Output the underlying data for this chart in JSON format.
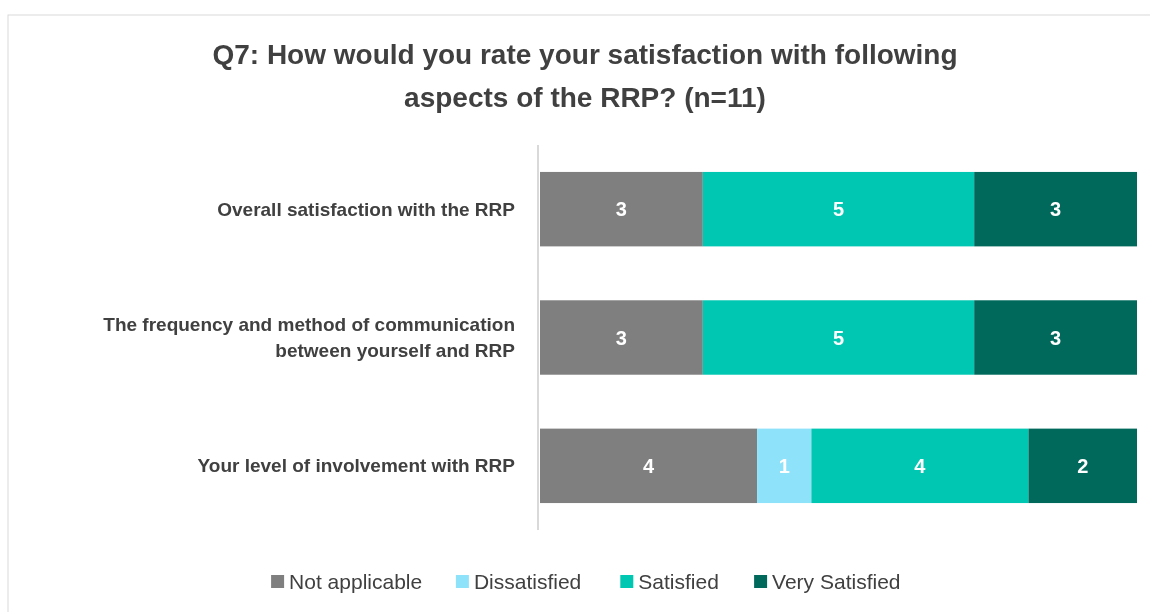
{
  "chart_data": {
    "type": "bar",
    "orientation": "horizontal",
    "stacked": true,
    "title": "Q7: How would you rate your satisfaction with following aspects of the RRP? (n=11)",
    "categories": [
      "Overall satisfaction with the RRP",
      "The frequency and method of communication between yourself and RRP",
      "Your level of involvement with RRP"
    ],
    "series": [
      {
        "name": "Not applicable",
        "color": "#7f7f7f",
        "values": [
          3,
          3,
          4
        ]
      },
      {
        "name": "Dissatisfied",
        "color": "#8ee3fb",
        "values": [
          null,
          null,
          1
        ]
      },
      {
        "name": "Satisfied",
        "color": "#00c7b1",
        "values": [
          5,
          5,
          4
        ]
      },
      {
        "name": "Very Satisfied",
        "color": "#00695c",
        "values": [
          3,
          3,
          2
        ]
      }
    ],
    "data_labels": true,
    "legend": "bottom"
  }
}
